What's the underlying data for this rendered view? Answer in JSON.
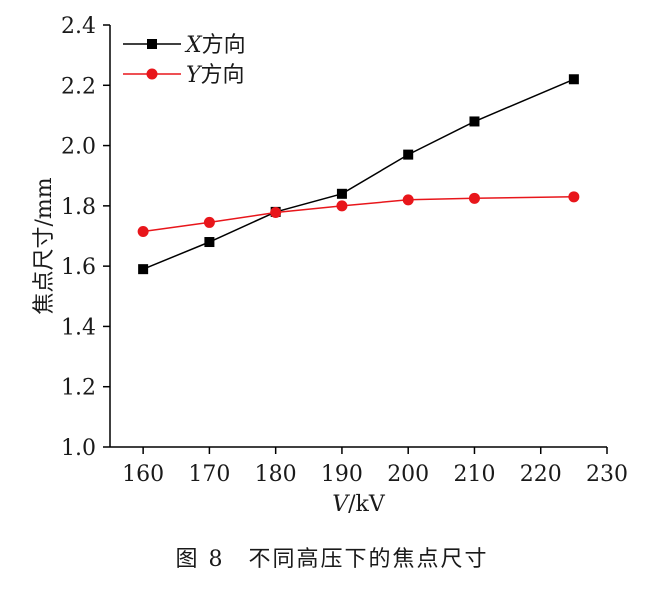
{
  "chart_data": {
    "type": "line",
    "title": "",
    "xlabel": "V/kV",
    "xlabel_italic": "V",
    "xlabel_unit": "/kV",
    "ylabel": "焦点尺寸/mm",
    "xlim": [
      155,
      230
    ],
    "ylim": [
      1.0,
      2.4
    ],
    "xticks": [
      "160",
      "170",
      "180",
      "190",
      "200",
      "210",
      "220",
      "230"
    ],
    "yticks": [
      "1.0",
      "1.2",
      "1.4",
      "1.6",
      "1.8",
      "2.0",
      "2.2",
      "2.4"
    ],
    "grid": false,
    "legend_position": "top-left",
    "series": [
      {
        "name": "X方向",
        "name_italic": "X",
        "name_rest": "方向",
        "marker": "square",
        "color": "#000000",
        "x": [
          160,
          170,
          180,
          190,
          200,
          210,
          225
        ],
        "values": [
          1.59,
          1.68,
          1.78,
          1.84,
          1.97,
          2.08,
          2.22
        ]
      },
      {
        "name": "Y方向",
        "name_italic": "Y",
        "name_rest": "方向",
        "marker": "circle",
        "color": "#e8161b",
        "x": [
          160,
          170,
          180,
          190,
          200,
          210,
          225
        ],
        "values": [
          1.715,
          1.745,
          1.778,
          1.8,
          1.82,
          1.825,
          1.83
        ]
      }
    ]
  },
  "caption": "图 8　不同高压下的焦点尺寸"
}
